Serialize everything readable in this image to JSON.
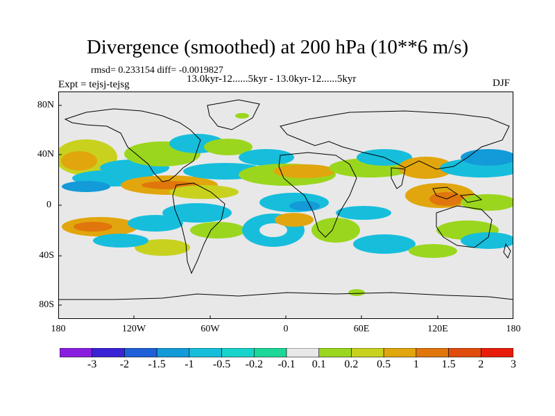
{
  "header": {
    "title": "Divergence (smoothed) at 200 hPa (10**6 m/s)",
    "stats": "rmsd= 0.233154 diff= -0.0019827",
    "period": "13.0kyr-12......5kyr - 13.0kyr-12......5kyr",
    "experiment": "Expt = tejsj-tejsg",
    "season": "DJF"
  },
  "map": {
    "lat_labels": [
      "80N",
      "40N",
      "0",
      "40S",
      "80S"
    ],
    "lon_labels": [
      "180",
      "120W",
      "60W",
      "0",
      "60E",
      "120E",
      "180"
    ]
  },
  "colorbar": {
    "labels": [
      "-3",
      "-2",
      "-1.5",
      "-1",
      "-0.5",
      "-0.2",
      "-0.1",
      "0.1",
      "0.2",
      "0.5",
      "1",
      "1.5",
      "2",
      "3"
    ],
    "colors": [
      "#8a1ee0",
      "#3a22d6",
      "#1f5fd8",
      "#139ad8",
      "#16bedc",
      "#17d4cc",
      "#1bd89a",
      "#e8e8e8",
      "#9bd61e",
      "#c8d21e",
      "#e1a60d",
      "#e0760c",
      "#e04c0b",
      "#e81c0a"
    ]
  },
  "colors": {
    "ocean_background": "#e8e8e8",
    "coastline": "#000000"
  }
}
